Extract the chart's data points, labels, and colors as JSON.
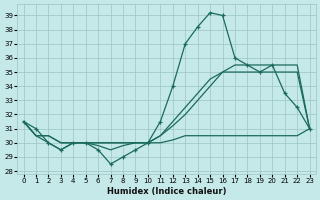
{
  "xlabel": "Humidex (Indice chaleur)",
  "xlim": [
    -0.5,
    23.5
  ],
  "ylim": [
    27.8,
    39.8
  ],
  "yticks": [
    28,
    29,
    30,
    31,
    32,
    33,
    34,
    35,
    36,
    37,
    38,
    39
  ],
  "xticks": [
    0,
    1,
    2,
    3,
    4,
    5,
    6,
    7,
    8,
    9,
    10,
    11,
    12,
    13,
    14,
    15,
    16,
    17,
    18,
    19,
    20,
    21,
    22,
    23
  ],
  "background_color": "#c5e8e8",
  "grid_color": "#9cc4c4",
  "line_color": "#1a6b5a",
  "series_spike": [
    31.5,
    31.0,
    30.0,
    29.5,
    30.0,
    30.0,
    29.5,
    28.5,
    29.0,
    29.5,
    30.0,
    31.5,
    34.0,
    37.0,
    38.2,
    39.2,
    39.0,
    36.0,
    35.5,
    35.0,
    35.5,
    33.5,
    32.5,
    31.0
  ],
  "series_diag1": [
    31.5,
    30.5,
    30.5,
    30.0,
    30.0,
    30.0,
    30.0,
    30.0,
    30.0,
    30.0,
    30.0,
    30.5,
    31.2,
    32.0,
    33.0,
    34.0,
    35.0,
    35.5,
    35.5,
    35.5,
    35.5,
    35.5,
    35.5,
    31.0
  ],
  "series_diag2": [
    31.5,
    30.5,
    30.5,
    30.0,
    30.0,
    30.0,
    30.0,
    30.0,
    30.0,
    30.0,
    30.0,
    30.5,
    31.5,
    32.5,
    33.5,
    34.5,
    35.0,
    35.0,
    35.0,
    35.0,
    35.0,
    35.0,
    35.0,
    31.0
  ],
  "series_flat": [
    31.5,
    30.5,
    30.0,
    29.5,
    30.0,
    30.0,
    29.8,
    29.5,
    29.8,
    30.0,
    30.0,
    30.0,
    30.2,
    30.5,
    30.5,
    30.5,
    30.5,
    30.5,
    30.5,
    30.5,
    30.5,
    30.5,
    30.5,
    31.0
  ]
}
